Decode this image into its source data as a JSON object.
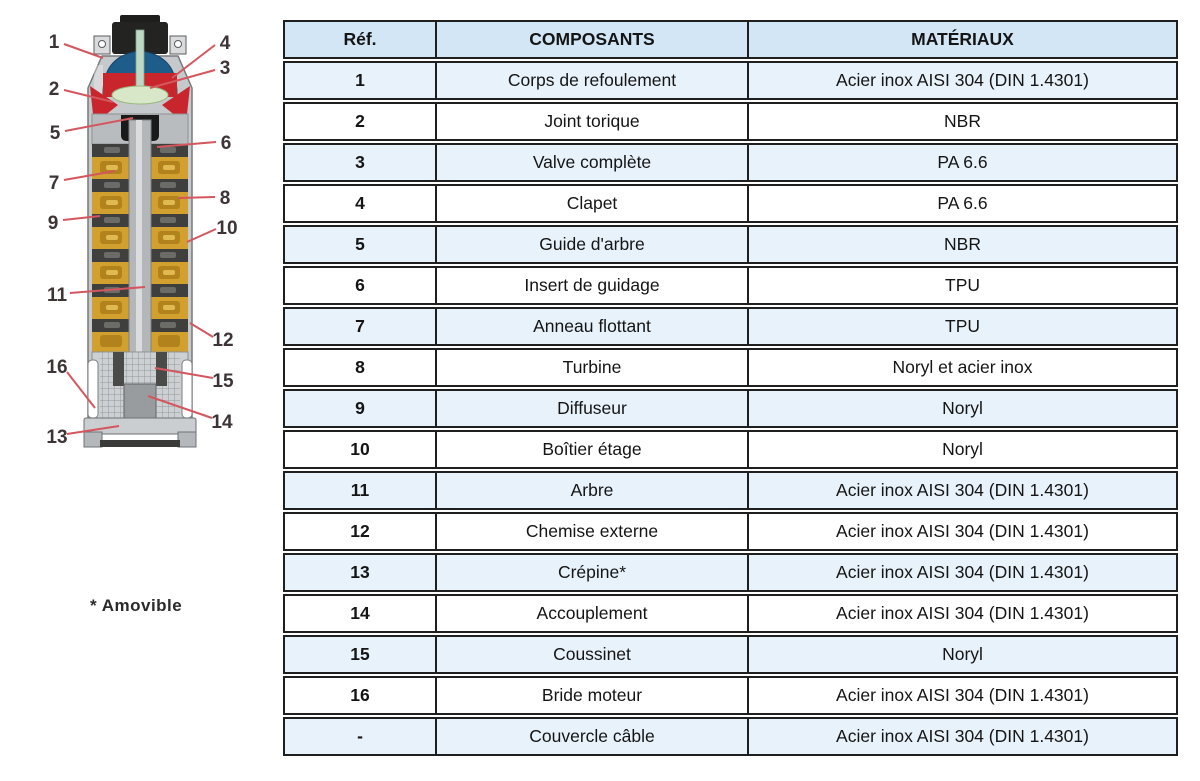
{
  "diagram": {
    "name": "pump-cross-section",
    "footnote": "* Amovible",
    "callouts": [
      "1",
      "2",
      "5",
      "7",
      "9",
      "11",
      "16",
      "13",
      "4",
      "3",
      "6",
      "8",
      "10",
      "12",
      "15",
      "14"
    ],
    "colors": {
      "leader_line": "#d4565e",
      "callout_text": "#3d3436",
      "discharge_blue": "#1e5c8a",
      "valve_red": "#c8262c",
      "clapet_green": "#d7e7c7",
      "stage_yellow": "#d2a02e",
      "diffuser_dark": "#3f3f3d",
      "casing_gray": "#c6c9cb"
    }
  },
  "table": {
    "header": {
      "ref": "Réf.",
      "components": "COMPOSANTS",
      "materials": "MATÉRIAUX"
    },
    "rows": [
      {
        "ref": "1",
        "component": "Corps de refoulement",
        "material": "Acier inox AISI 304 (DIN 1.4301)"
      },
      {
        "ref": "2",
        "component": "Joint torique",
        "material": "NBR"
      },
      {
        "ref": "3",
        "component": "Valve complète",
        "material": "PA 6.6"
      },
      {
        "ref": "4",
        "component": "Clapet",
        "material": "PA 6.6"
      },
      {
        "ref": "5",
        "component": "Guide d'arbre",
        "material": "NBR"
      },
      {
        "ref": "6",
        "component": "Insert de guidage",
        "material": "TPU"
      },
      {
        "ref": "7",
        "component": "Anneau flottant",
        "material": "TPU"
      },
      {
        "ref": "8",
        "component": "Turbine",
        "material": "Noryl et acier inox"
      },
      {
        "ref": "9",
        "component": "Diffuseur",
        "material": "Noryl"
      },
      {
        "ref": "10",
        "component": "Boîtier étage",
        "material": "Noryl"
      },
      {
        "ref": "11",
        "component": "Arbre",
        "material": "Acier inox AISI 304 (DIN 1.4301)"
      },
      {
        "ref": "12",
        "component": "Chemise externe",
        "material": "Acier inox AISI 304 (DIN 1.4301)"
      },
      {
        "ref": "13",
        "component": "Crépine*",
        "material": "Acier inox AISI 304 (DIN 1.4301)"
      },
      {
        "ref": "14",
        "component": "Accouplement",
        "material": "Acier inox AISI 304 (DIN 1.4301)"
      },
      {
        "ref": "15",
        "component": "Coussinet",
        "material": "Noryl"
      },
      {
        "ref": "16",
        "component": "Bride moteur",
        "material": "Acier inox AISI 304 (DIN 1.4301)"
      },
      {
        "ref": "-",
        "component": "Couvercle câble",
        "material": "Acier inox AISI 304 (DIN 1.4301)"
      }
    ],
    "colors": {
      "header_bg": "#d3e6f6",
      "row_alt_bg": "#e8f2fb",
      "row_bg": "#ffffff",
      "border": "#1f1f1f"
    }
  }
}
